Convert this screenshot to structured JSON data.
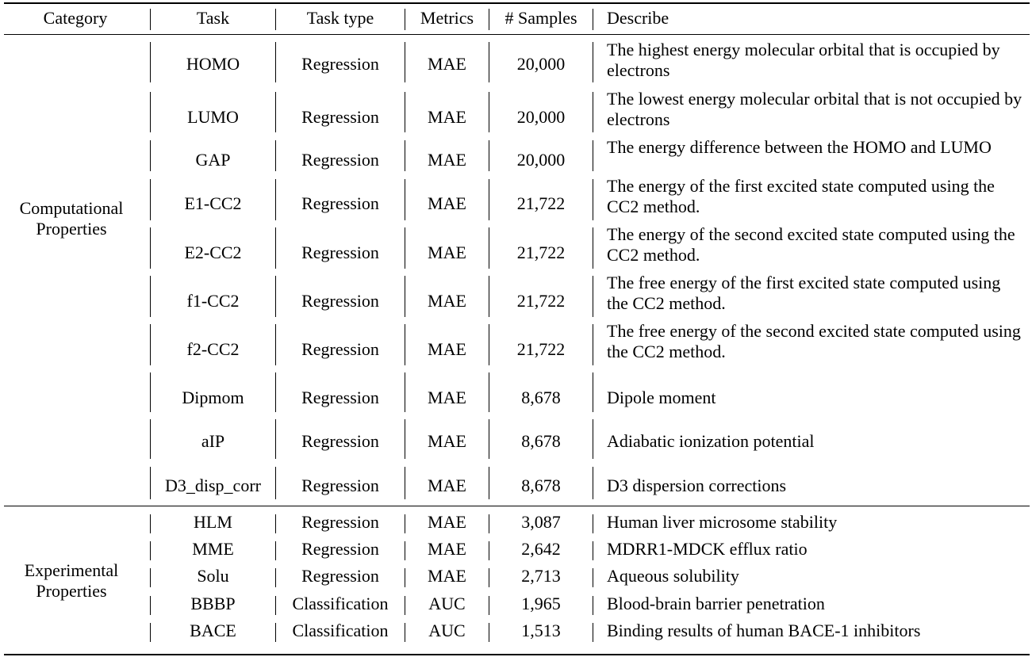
{
  "headers": {
    "category": "Category",
    "task": "Task",
    "task_type": "Task type",
    "metrics": "Metrics",
    "samples": "# Samples",
    "describe": "Describe"
  },
  "groups": [
    {
      "category": "Computational Properties",
      "rows": [
        {
          "task": "HOMO",
          "task_type": "Regression",
          "metric": "MAE",
          "samples": "20,000",
          "describe": "The highest energy molecular orbital that is occupied by electrons"
        },
        {
          "task": "LUMO",
          "task_type": "Regression",
          "metric": "MAE",
          "samples": "20,000",
          "describe": "The lowest energy molecular orbital that is not occupied by electrons"
        },
        {
          "task": "GAP",
          "task_type": "Regression",
          "metric": "MAE",
          "samples": "20,000",
          "describe": "The energy difference between the HOMO and LUMO"
        },
        {
          "task": "E1-CC2",
          "task_type": "Regression",
          "metric": "MAE",
          "samples": "21,722",
          "describe": "The energy of the first excited state computed using the CC2 method."
        },
        {
          "task": "E2-CC2",
          "task_type": "Regression",
          "metric": "MAE",
          "samples": "21,722",
          "describe": "The energy of the second excited state computed using the CC2 method."
        },
        {
          "task": "f1-CC2",
          "task_type": "Regression",
          "metric": "MAE",
          "samples": "21,722",
          "describe": "The free energy of the first excited state computed using the CC2 method."
        },
        {
          "task": "f2-CC2",
          "task_type": "Regression",
          "metric": "MAE",
          "samples": "21,722",
          "describe": "The free energy of the second excited state computed using the CC2 method."
        },
        {
          "task": "Dipmom",
          "task_type": "Regression",
          "metric": "MAE",
          "samples": "8,678",
          "describe": "Dipole moment"
        },
        {
          "task": "aIP",
          "task_type": "Regression",
          "metric": "MAE",
          "samples": "8,678",
          "describe": "Adiabatic ionization potential"
        },
        {
          "task": "D3_disp_corr",
          "task_type": "Regression",
          "metric": "MAE",
          "samples": "8,678",
          "describe": "D3 dispersion corrections"
        }
      ]
    },
    {
      "category": "Experimental Properties",
      "rows": [
        {
          "task": "HLM",
          "task_type": "Regression",
          "metric": "MAE",
          "samples": "3,087",
          "describe": "Human liver microsome stability"
        },
        {
          "task": "MME",
          "task_type": "Regression",
          "metric": "MAE",
          "samples": "2,642",
          "describe": "MDRR1-MDCK efflux ratio"
        },
        {
          "task": "Solu",
          "task_type": "Regression",
          "metric": "MAE",
          "samples": "2,713",
          "describe": "Aqueous solubility"
        },
        {
          "task": "BBBP",
          "task_type": "Classification",
          "metric": "AUC",
          "samples": "1,965",
          "describe": "Blood-brain barrier penetration"
        },
        {
          "task": "BACE",
          "task_type": "Classification",
          "metric": "AUC",
          "samples": "1,513",
          "describe": "Binding results of human BACE-1 inhibitors"
        }
      ]
    }
  ]
}
